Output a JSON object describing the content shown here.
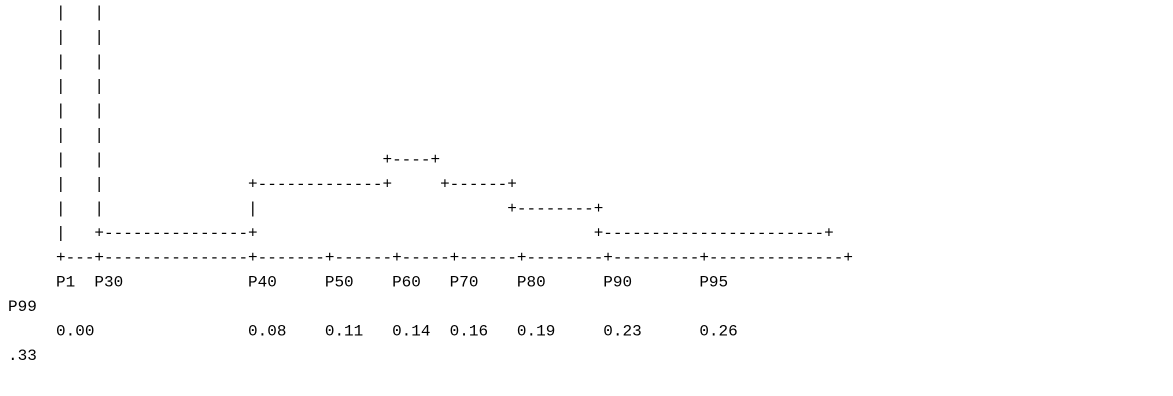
{
  "chart_data": {
    "type": "line",
    "style": "ascii step chart",
    "title": "",
    "xlabel": "",
    "ylabel": "",
    "categories": [
      "P1",
      "P30",
      "P40",
      "P50",
      "P60",
      "P70",
      "P80",
      "P90",
      "P95",
      "P99"
    ],
    "value_labels": [
      "0.00",
      "0.08",
      "0.11",
      "0.14",
      "0.16",
      "0.19",
      "0.23",
      "0.26",
      ".33"
    ],
    "ascii_lines": [
      "     |   |",
      "     |   |",
      "     |   |",
      "     |   |",
      "     |   |",
      "     |   |",
      "     |   |                             +----+",
      "     |   |               +-------------+     +------+",
      "     |   |               |                          +--------+",
      "     |   +---------------+                                   +-----------------------+",
      "     +---+---------------+-------+------+-----+------+--------+---------+--------------+",
      "     P1  P30             P40     P50    P60   P70    P80      P90       P95",
      "P99",
      "     0.00                0.08    0.11   0.14  0.16   0.19     0.23      0.26",
      ".33"
    ]
  }
}
